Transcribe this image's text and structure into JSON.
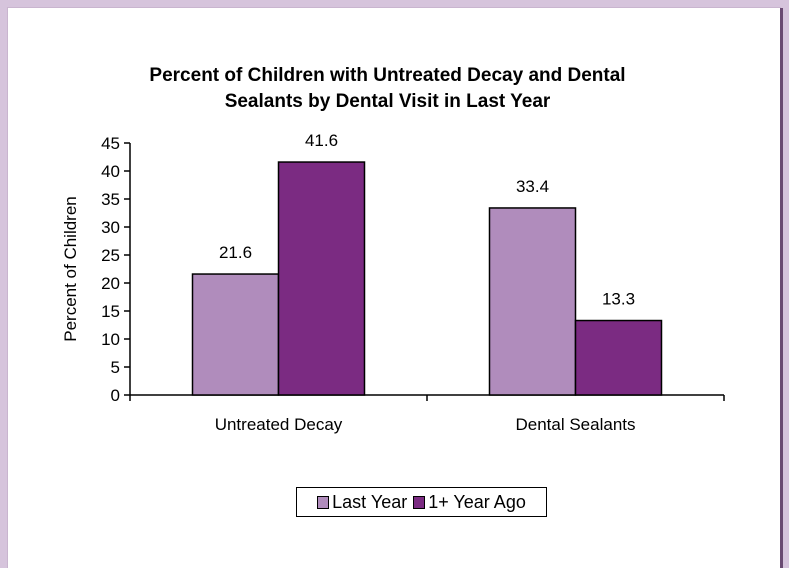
{
  "chart_data": {
    "type": "bar",
    "title": "Percent of Children with Untreated Decay and Dental Sealants by Dental Visit in Last Year",
    "title_lines": [
      "Percent of Children with Untreated Decay and Dental",
      "Sealants by Dental Visit in Last Year"
    ],
    "categories": [
      "Untreated Decay",
      "Dental Sealants"
    ],
    "series": [
      {
        "name": "Last Year",
        "values": [
          21.6,
          33.4
        ],
        "color": "#b08cbc"
      },
      {
        "name": "1+ Year Ago",
        "values": [
          41.6,
          13.3
        ],
        "color": "#7b2b82"
      }
    ],
    "ylabel": "Percent of Children",
    "xlabel": "",
    "ylim": [
      0,
      45
    ],
    "yticks": [
      0,
      5,
      10,
      15,
      20,
      25,
      30,
      35,
      40,
      45
    ],
    "grid": false,
    "legend_position": "bottom"
  }
}
